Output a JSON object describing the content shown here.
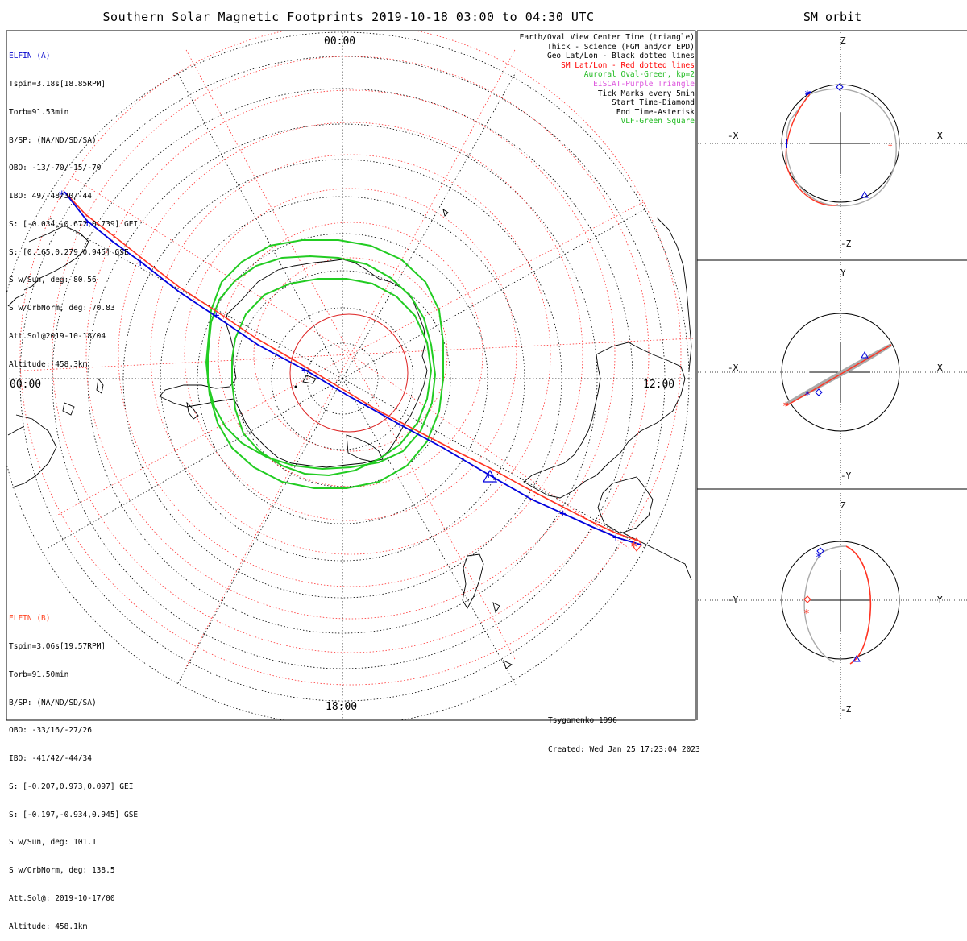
{
  "title": "Southern Solar Magnetic Footprints 2019-10-18 03:00 to 04:30 UTC",
  "orbit_title": "SM orbit",
  "clock_labels": {
    "top": "00:00",
    "left": "00:00",
    "right": "12:00",
    "bottom": "18:00"
  },
  "elfin_a": {
    "name": "ELFIN (A)",
    "color": "#0000cc",
    "lines": [
      "Tspin=3.18s[18.85RPM]",
      "Torb=91.53min",
      "B/SP: (NA/ND/SD/SA)",
      "OBO: -13/-70/-15/-70",
      "IBO: 49/-48/30/-44",
      "S: [-0.034,-0.672,0.739] GEI",
      "S: [0.165,0.279,0.945] GSE",
      "S w/Sun, deg: 80.56",
      "S w/OrbNorm, deg: 70.83",
      "Att.Sol@2019-10-18/04",
      "Altitude: 458.3km"
    ]
  },
  "elfin_b": {
    "name": "ELFIN (B)",
    "color": "#ff4422",
    "lines": [
      "Tspin=3.06s[19.57RPM]",
      "Torb=91.50min",
      "B/SP: (NA/ND/SD/SA)",
      "OBO: -33/16/-27/26",
      "IBO: -41/42/-44/34",
      "S: [-0.207,0.973,0.097] GEI",
      "S: [-0.197,-0.934,0.945] GSE",
      "S w/Sun, deg: 101.1",
      "S w/OrbNorm, deg: 138.5",
      "Att.Sol@: 2019-10-17/00",
      "Altitude: 458.1km"
    ]
  },
  "legend": [
    {
      "text": "Earth/Oval View Center Time (triangle)",
      "color": "#000000"
    },
    {
      "text": "Thick - Science (FGM and/or EPD)",
      "color": "#000000"
    },
    {
      "text": "Geo Lat/Lon - Black dotted lines",
      "color": "#000000"
    },
    {
      "text": "SM Lat/Lon - Red dotted lines",
      "color": "#ff0000"
    },
    {
      "text": "Auroral Oval-Green, kp=2",
      "color": "#22bb22"
    },
    {
      "text": "EISCAT-Purple Triangle",
      "color": "#dd55dd"
    },
    {
      "text": "Tick Marks every 5min",
      "color": "#000000"
    },
    {
      "text": "Start Time-Diamond",
      "color": "#000000"
    },
    {
      "text": "End Time-Asterisk",
      "color": "#000000"
    },
    {
      "text": "VLF-Green Square",
      "color": "#22bb22"
    }
  ],
  "footer": {
    "model": "Tsyganenko-1996",
    "created": "Created: Wed Jan 25 17:23:04 2023"
  },
  "orbit_panels": [
    {
      "top": "Z",
      "bottom": "-Z",
      "left": "-X",
      "right": "X"
    },
    {
      "top": "Y",
      "bottom": "-Y",
      "left": "-X",
      "right": "X"
    },
    {
      "top": "Z",
      "bottom": "-Z",
      "left": "-Y",
      "right": "Y"
    }
  ],
  "colors": {
    "track_a": "#0000dd",
    "track_b": "#ff3322",
    "oval": "#22cc22",
    "sm_grid": "#ff4444",
    "geo_grid": "#000000",
    "orbit_gray": "#aaaaaa"
  }
}
